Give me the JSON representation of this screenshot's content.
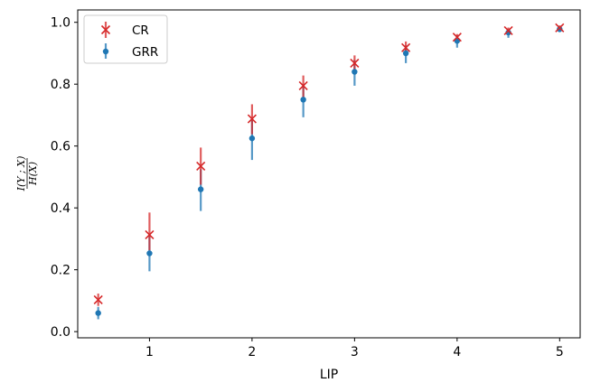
{
  "chart_data": {
    "type": "scatter",
    "xlabel": "LIP",
    "ylabel_numerator": "I(Y ; X)",
    "ylabel_denominator": "H(X)",
    "xlim": [
      0.3,
      5.2
    ],
    "ylim": [
      -0.02,
      1.04
    ],
    "xticks": [
      1,
      2,
      3,
      4,
      5
    ],
    "xtick_labels": [
      "1",
      "2",
      "3",
      "4",
      "5"
    ],
    "yticks": [
      0.0,
      0.2,
      0.4,
      0.6,
      0.8,
      1.0
    ],
    "ytick_labels": [
      "0.0",
      "0.2",
      "0.4",
      "0.6",
      "0.8",
      "1.0"
    ],
    "grid": false,
    "legend_position": "top-left",
    "x": [
      0.5,
      1.0,
      1.5,
      2.0,
      2.5,
      3.0,
      3.5,
      4.0,
      4.5,
      5.0
    ],
    "series": [
      {
        "name": "CR",
        "marker": "x",
        "color": "#d62728",
        "values": [
          0.103,
          0.313,
          0.535,
          0.688,
          0.795,
          0.868,
          0.918,
          0.952,
          0.973,
          0.982
        ],
        "err_low": [
          0.083,
          0.263,
          0.475,
          0.638,
          0.755,
          0.838,
          0.898,
          0.938,
          0.963,
          0.975
        ],
        "err_high": [
          0.123,
          0.385,
          0.595,
          0.735,
          0.828,
          0.893,
          0.938,
          0.962,
          0.983,
          0.99
        ]
      },
      {
        "name": "GRR",
        "marker": "o",
        "color": "#1f77b4",
        "values": [
          0.06,
          0.253,
          0.46,
          0.625,
          0.75,
          0.84,
          0.9,
          0.94,
          0.967,
          0.978
        ],
        "err_low": [
          0.04,
          0.195,
          0.39,
          0.555,
          0.693,
          0.795,
          0.868,
          0.918,
          0.95,
          0.968
        ],
        "err_high": [
          0.08,
          0.31,
          0.525,
          0.688,
          0.8,
          0.878,
          0.925,
          0.958,
          0.977,
          0.985
        ]
      }
    ]
  }
}
